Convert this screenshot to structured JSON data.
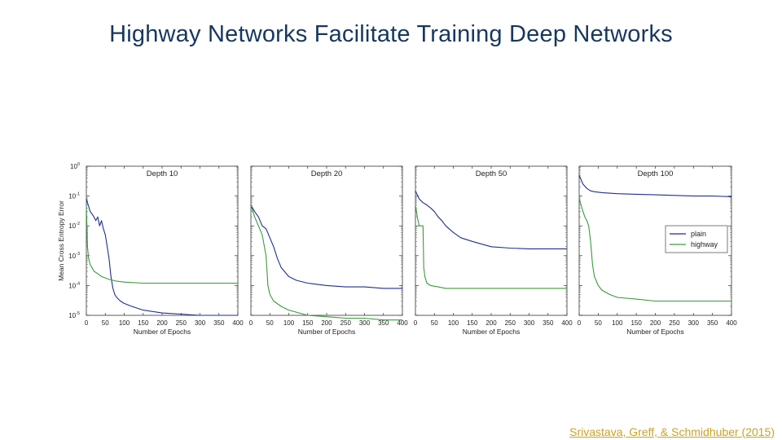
{
  "slide": {
    "title": "Highway Networks Facilitate Training Deep Networks",
    "citation": "Srivastava, Greff, & Schmidhuber (2015)"
  },
  "colors": {
    "plain": "#1f2f8f",
    "highway": "#3a9a3a",
    "title": "#17375e",
    "citation": "#c9a227"
  },
  "chart_data": [
    {
      "type": "line",
      "title": "Depth 10",
      "xlabel": "Number of Epochs",
      "ylabel": "Mean Cross Entropy Error",
      "xlim": [
        0,
        400
      ],
      "ylim": [
        1e-05,
        1
      ],
      "yscale": "log",
      "xticks": [
        "0",
        "50",
        "100",
        "150",
        "200",
        "250",
        "300",
        "350",
        "400"
      ],
      "yticks": [
        {
          "base": "10",
          "exp": "0"
        },
        {
          "base": "10",
          "exp": "-1"
        },
        {
          "base": "10",
          "exp": "-2"
        },
        {
          "base": "10",
          "exp": "-3"
        },
        {
          "base": "10",
          "exp": "-4"
        },
        {
          "base": "10",
          "exp": "-5"
        }
      ],
      "series": [
        {
          "key": "plain",
          "x": [
            0,
            5,
            10,
            15,
            20,
            25,
            30,
            35,
            40,
            45,
            50,
            55,
            60,
            65,
            70,
            75,
            80,
            90,
            100,
            120,
            150,
            200,
            250,
            300,
            350,
            400
          ],
          "y": [
            0.08,
            0.05,
            0.03,
            0.025,
            0.02,
            0.015,
            0.02,
            0.01,
            0.015,
            0.008,
            0.005,
            0.002,
            0.0008,
            0.0002,
            8e-05,
            5e-05,
            4e-05,
            3e-05,
            2.5e-05,
            2e-05,
            1.5e-05,
            1.2e-05,
            1.1e-05,
            1e-05,
            1e-05,
            1e-05
          ]
        },
        {
          "key": "highway",
          "x": [
            0,
            3,
            6,
            10,
            15,
            20,
            30,
            40,
            60,
            80,
            100,
            150,
            200,
            250,
            300,
            350,
            400
          ],
          "y": [
            0.05,
            0.002,
            0.0008,
            0.0005,
            0.0004,
            0.0003,
            0.00025,
            0.0002,
            0.00016,
            0.00014,
            0.00013,
            0.00012,
            0.00012,
            0.00012,
            0.00012,
            0.00012,
            0.00012
          ]
        }
      ]
    },
    {
      "type": "line",
      "title": "Depth 20",
      "xlabel": "Number of Epochs",
      "xlim": [
        0,
        400
      ],
      "ylim": [
        1e-05,
        1
      ],
      "yscale": "log",
      "xticks": [
        "0",
        "50",
        "100",
        "150",
        "200",
        "250",
        "300",
        "350",
        "400"
      ],
      "series": [
        {
          "key": "plain",
          "x": [
            0,
            10,
            20,
            30,
            40,
            50,
            60,
            70,
            80,
            100,
            120,
            150,
            200,
            250,
            300,
            350,
            400
          ],
          "y": [
            0.05,
            0.03,
            0.02,
            0.01,
            0.008,
            0.004,
            0.002,
            0.0008,
            0.0004,
            0.0002,
            0.00015,
            0.00012,
            0.0001,
            9e-05,
            9e-05,
            8e-05,
            8e-05
          ]
        },
        {
          "key": "highway",
          "x": [
            0,
            10,
            20,
            30,
            40,
            45,
            50,
            60,
            80,
            100,
            150,
            200,
            250,
            300,
            350,
            400
          ],
          "y": [
            0.05,
            0.02,
            0.01,
            0.005,
            0.001,
            0.0001,
            5e-05,
            3e-05,
            2e-05,
            1.5e-05,
            1e-05,
            9e-06,
            8e-06,
            8e-06,
            7e-06,
            7e-06
          ]
        }
      ]
    },
    {
      "type": "line",
      "title": "Depth 50",
      "xlabel": "Number of Epochs",
      "xlim": [
        0,
        400
      ],
      "ylim": [
        1e-05,
        1
      ],
      "yscale": "log",
      "xticks": [
        "0",
        "50",
        "100",
        "150",
        "200",
        "250",
        "300",
        "350",
        "400"
      ],
      "series": [
        {
          "key": "plain",
          "x": [
            0,
            10,
            20,
            30,
            40,
            50,
            60,
            70,
            80,
            100,
            120,
            150,
            200,
            250,
            300,
            350,
            400
          ],
          "y": [
            0.15,
            0.08,
            0.06,
            0.05,
            0.04,
            0.03,
            0.02,
            0.015,
            0.01,
            0.006,
            0.004,
            0.003,
            0.002,
            0.0018,
            0.0017,
            0.0017,
            0.0017
          ]
        },
        {
          "key": "highway",
          "x": [
            0,
            5,
            10,
            15,
            20,
            22,
            25,
            30,
            40,
            60,
            80,
            100,
            150,
            200,
            250,
            300,
            350,
            400
          ],
          "y": [
            0.05,
            0.02,
            0.01,
            0.01,
            0.01,
            0.0004,
            0.0002,
            0.00012,
            0.0001,
            9e-05,
            8e-05,
            8e-05,
            8e-05,
            8e-05,
            8e-05,
            8e-05,
            8e-05,
            8e-05
          ]
        }
      ]
    },
    {
      "type": "line",
      "title": "Depth 100",
      "xlabel": "Number of Epochs",
      "xlim": [
        0,
        400
      ],
      "ylim": [
        1e-05,
        1
      ],
      "yscale": "log",
      "xticks": [
        "0",
        "50",
        "100",
        "150",
        "200",
        "250",
        "300",
        "350",
        "400"
      ],
      "legend": {
        "position": "right",
        "entries": [
          {
            "key": "plain",
            "label": "plain"
          },
          {
            "key": "highway",
            "label": "highway"
          }
        ]
      },
      "series": [
        {
          "key": "plain",
          "x": [
            0,
            10,
            20,
            30,
            40,
            60,
            80,
            100,
            150,
            200,
            250,
            300,
            350,
            400
          ],
          "y": [
            0.5,
            0.25,
            0.18,
            0.15,
            0.14,
            0.13,
            0.125,
            0.12,
            0.115,
            0.11,
            0.105,
            0.1,
            0.1,
            0.095
          ]
        },
        {
          "key": "highway",
          "x": [
            0,
            5,
            10,
            15,
            20,
            25,
            30,
            35,
            40,
            50,
            60,
            80,
            100,
            150,
            200,
            250,
            300,
            350,
            400
          ],
          "y": [
            0.08,
            0.05,
            0.03,
            0.02,
            0.015,
            0.01,
            0.003,
            0.0005,
            0.0002,
            0.0001,
            7e-05,
            5e-05,
            4e-05,
            3.5e-05,
            3e-05,
            3e-05,
            3e-05,
            3e-05,
            3e-05
          ]
        }
      ]
    }
  ]
}
